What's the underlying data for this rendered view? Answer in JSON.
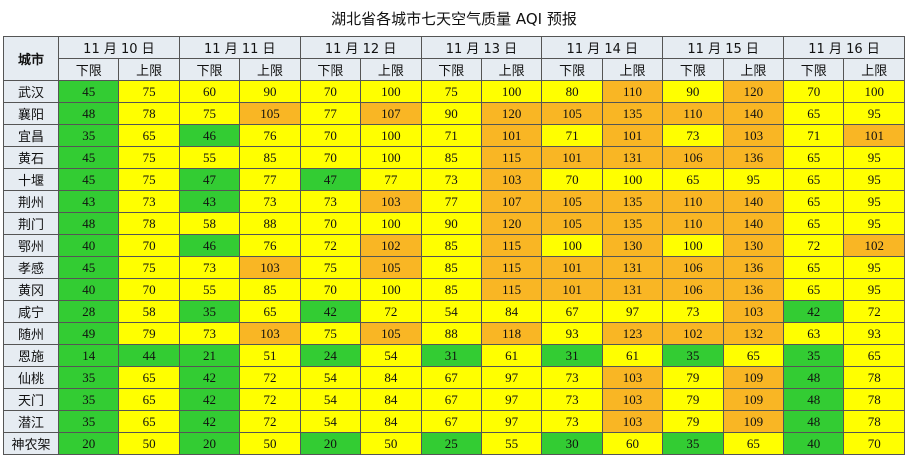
{
  "title": "湖北省各城市七天空气质量 AQI 预报",
  "table": {
    "corner": "城市",
    "days": [
      "11 月 10 日",
      "11 月 11 日",
      "11 月 12 日",
      "11 月 13 日",
      "11 月 14 日",
      "11 月 15 日",
      "11 月 16 日"
    ],
    "subheaders": [
      "下限",
      "上限"
    ],
    "rows": [
      {
        "city": "武汉",
        "values": [
          45,
          75,
          60,
          90,
          70,
          100,
          75,
          100,
          80,
          110,
          90,
          120,
          70,
          100
        ]
      },
      {
        "city": "襄阳",
        "values": [
          48,
          78,
          75,
          105,
          77,
          107,
          90,
          120,
          105,
          135,
          110,
          140,
          65,
          95
        ]
      },
      {
        "city": "宜昌",
        "values": [
          35,
          65,
          46,
          76,
          70,
          100,
          71,
          101,
          71,
          101,
          73,
          103,
          71,
          101
        ]
      },
      {
        "city": "黄石",
        "values": [
          45,
          75,
          55,
          85,
          70,
          100,
          85,
          115,
          101,
          131,
          106,
          136,
          65,
          95
        ]
      },
      {
        "city": "十堰",
        "values": [
          45,
          75,
          47,
          77,
          47,
          77,
          73,
          103,
          70,
          100,
          65,
          95,
          65,
          95
        ]
      },
      {
        "city": "荆州",
        "values": [
          43,
          73,
          43,
          73,
          73,
          103,
          77,
          107,
          105,
          135,
          110,
          140,
          65,
          95
        ]
      },
      {
        "city": "荆门",
        "values": [
          48,
          78,
          58,
          88,
          70,
          100,
          90,
          120,
          105,
          135,
          110,
          140,
          65,
          95
        ]
      },
      {
        "city": "鄂州",
        "values": [
          40,
          70,
          46,
          76,
          72,
          102,
          85,
          115,
          100,
          130,
          100,
          130,
          72,
          102
        ]
      },
      {
        "city": "孝感",
        "values": [
          45,
          75,
          73,
          103,
          75,
          105,
          85,
          115,
          101,
          131,
          106,
          136,
          65,
          95
        ]
      },
      {
        "city": "黄冈",
        "values": [
          40,
          70,
          55,
          85,
          70,
          100,
          85,
          115,
          101,
          131,
          106,
          136,
          65,
          95
        ]
      },
      {
        "city": "咸宁",
        "values": [
          28,
          58,
          35,
          65,
          42,
          72,
          54,
          84,
          67,
          97,
          73,
          103,
          42,
          72
        ]
      },
      {
        "city": "随州",
        "values": [
          49,
          79,
          73,
          103,
          75,
          105,
          88,
          118,
          93,
          123,
          102,
          132,
          63,
          93
        ]
      },
      {
        "city": "恩施",
        "values": [
          14,
          44,
          21,
          51,
          24,
          54,
          31,
          61,
          31,
          61,
          35,
          65,
          35,
          65
        ]
      },
      {
        "city": "仙桃",
        "values": [
          35,
          65,
          42,
          72,
          54,
          84,
          67,
          97,
          73,
          103,
          79,
          109,
          48,
          78
        ]
      },
      {
        "city": "天门",
        "values": [
          35,
          65,
          42,
          72,
          54,
          84,
          67,
          97,
          73,
          103,
          79,
          109,
          48,
          78
        ]
      },
      {
        "city": "潜江",
        "values": [
          35,
          65,
          42,
          72,
          54,
          84,
          67,
          97,
          73,
          103,
          79,
          109,
          48,
          78
        ]
      },
      {
        "city": "神农架",
        "values": [
          20,
          50,
          20,
          50,
          20,
          50,
          25,
          55,
          30,
          60,
          35,
          65,
          40,
          70
        ]
      }
    ]
  }
}
